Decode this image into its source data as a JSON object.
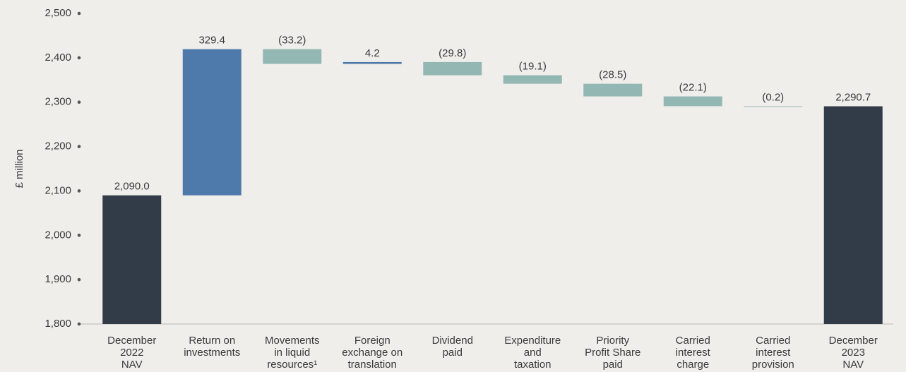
{
  "chart_data": {
    "type": "waterfall",
    "y_label": "£ million",
    "categories": [
      [
        "December",
        "2022",
        "NAV"
      ],
      [
        "Return on",
        "investments"
      ],
      [
        "Movements",
        "in liquid",
        "resources¹"
      ],
      [
        "Foreign",
        "exchange on",
        "translation"
      ],
      [
        "Dividend",
        "paid"
      ],
      [
        "Expenditure",
        "and",
        "taxation"
      ],
      [
        "Priority",
        "Profit Share",
        "paid"
      ],
      [
        "Carried",
        "interest",
        "charge"
      ],
      [
        "Carried",
        "interest",
        "provision"
      ],
      [
        "December",
        "2023",
        "NAV"
      ]
    ],
    "values": [
      2090.0,
      329.4,
      -33.2,
      4.2,
      -29.8,
      -19.1,
      -28.5,
      -22.1,
      -0.2,
      2290.7
    ],
    "value_labels": [
      "2,090.0",
      "329.4",
      "(33.2)",
      "4.2",
      "(29.8)",
      "(19.1)",
      "(28.5)",
      "(22.1)",
      "(0.2)",
      "2,290.7"
    ],
    "bar_kinds": [
      "total",
      "change",
      "change",
      "change",
      "change",
      "change",
      "change",
      "change",
      "change",
      "total"
    ],
    "colors": {
      "total": "#323c48",
      "increase": "#4e7aab",
      "decrease": "#93b8b4"
    },
    "ylim": [
      1800,
      2500
    ],
    "yticks": [
      {
        "value": 1800,
        "label": "1,800"
      },
      {
        "value": 1900,
        "label": "1,900"
      },
      {
        "value": 2000,
        "label": "2,000"
      },
      {
        "value": 2100,
        "label": "2,100"
      },
      {
        "value": 2200,
        "label": "2,200"
      },
      {
        "value": 2300,
        "label": "2,300"
      },
      {
        "value": 2400,
        "label": "2,400"
      },
      {
        "value": 2500,
        "label": "2,500"
      }
    ]
  }
}
